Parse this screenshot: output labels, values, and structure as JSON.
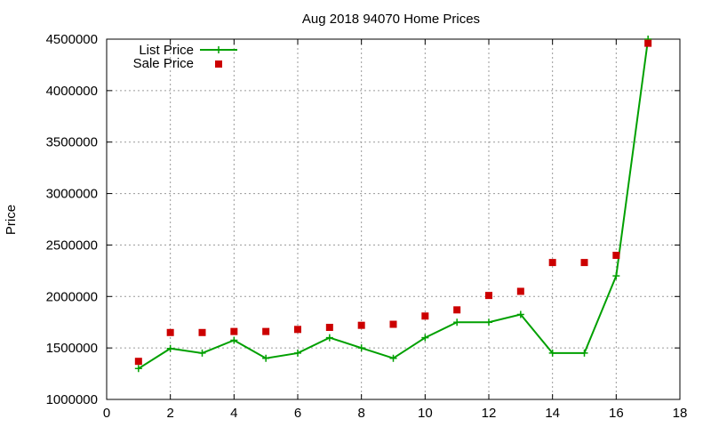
{
  "chart_data": {
    "type": "line",
    "title": "Aug 2018 94070 Home Prices",
    "xlabel": "",
    "ylabel": "Price",
    "xlim": [
      0,
      18
    ],
    "ylim": [
      1000000,
      4500000
    ],
    "x_ticks": [
      0,
      2,
      4,
      6,
      8,
      10,
      12,
      14,
      16,
      18
    ],
    "y_ticks": [
      1000000,
      1500000,
      2000000,
      2500000,
      3000000,
      3500000,
      4000000,
      4500000
    ],
    "grid": true,
    "legend_position": "top-left",
    "series": [
      {
        "name": "List Price",
        "style": "line with plus markers",
        "color": "#00a000",
        "x": [
          1,
          2,
          3,
          4,
          5,
          6,
          7,
          8,
          9,
          10,
          11,
          12,
          13,
          14,
          15,
          16,
          17
        ],
        "values": [
          1300000,
          1495000,
          1450000,
          1575000,
          1400000,
          1450000,
          1600000,
          1500000,
          1400000,
          1600000,
          1750000,
          1750000,
          1825000,
          1450000,
          1450000,
          2200000,
          4500000
        ]
      },
      {
        "name": "Sale Price",
        "style": "square points",
        "color": "#cc0000",
        "x": [
          1,
          2,
          3,
          4,
          5,
          6,
          7,
          8,
          9,
          10,
          11,
          12,
          13,
          14,
          15,
          16,
          17
        ],
        "values": [
          1370000,
          1650000,
          1650000,
          1660000,
          1660000,
          1680000,
          1700000,
          1720000,
          1730000,
          1810000,
          1870000,
          2010000,
          2050000,
          2330000,
          2330000,
          2400000,
          4460000
        ]
      }
    ]
  }
}
